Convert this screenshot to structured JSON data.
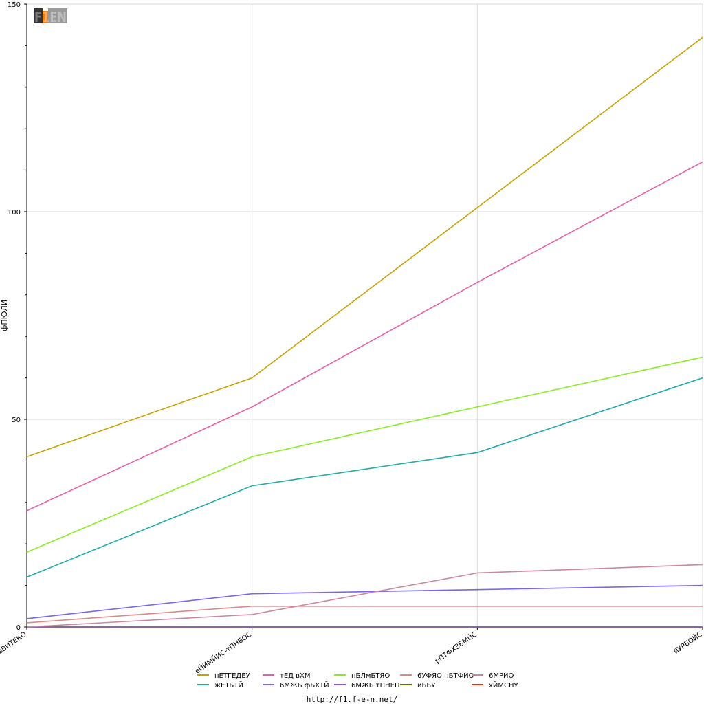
{
  "chart_data": {
    "type": "line",
    "title": "",
    "xlabel": "",
    "ylabel": "фПЮЛИ",
    "categories": [
      "вВИТЕКО",
      "еЙИМЙИС-тПНБОС",
      "рПТФХЗБМЙС",
      "йУРБОЙС"
    ],
    "ylim": [
      0,
      150
    ],
    "yticks": [
      0,
      50,
      100,
      150
    ],
    "grid": true,
    "legend_position": "bottom",
    "series": [
      {
        "name": "нЕТГЕДЕУ",
        "color": "#c8a000",
        "values": [
          41,
          60,
          101,
          142
        ]
      },
      {
        "name": "тЕД вХМ",
        "color": "#e85fa9",
        "values": [
          28,
          53,
          83,
          112
        ]
      },
      {
        "name": "нБЛмБТЯО",
        "color": "#88ee22",
        "values": [
          18,
          41,
          53,
          65
        ]
      },
      {
        "name": "6УФЯО нБТФЙО",
        "color": "#dd8888",
        "values": [
          1,
          5,
          5,
          5
        ]
      },
      {
        "name": "6МРЙО",
        "color": "#cc8899",
        "values": [
          0,
          3,
          13,
          15
        ]
      },
      {
        "name": "жЕТБТЙ",
        "color": "#22aaaa",
        "values": [
          12,
          34,
          42,
          60
        ]
      },
      {
        "name": "6МЖБ фБХТЙ",
        "color": "#7766ee",
        "values": [
          2,
          8,
          9,
          10
        ]
      },
      {
        "name": "6МЖБ тПНЕП",
        "color": "#8855dd",
        "values": [
          0,
          0,
          0,
          0
        ]
      },
      {
        "name": "иББУ",
        "color": "#557700",
        "values": [
          0,
          0,
          0,
          0
        ]
      },
      {
        "name": "хЙМСНУ",
        "color": "#dd3311",
        "values": [
          0,
          0,
          0,
          0
        ]
      }
    ]
  },
  "logo": {
    "text": "F1EN"
  },
  "footer": {
    "url": "http://f1.f-e-n.net/"
  }
}
